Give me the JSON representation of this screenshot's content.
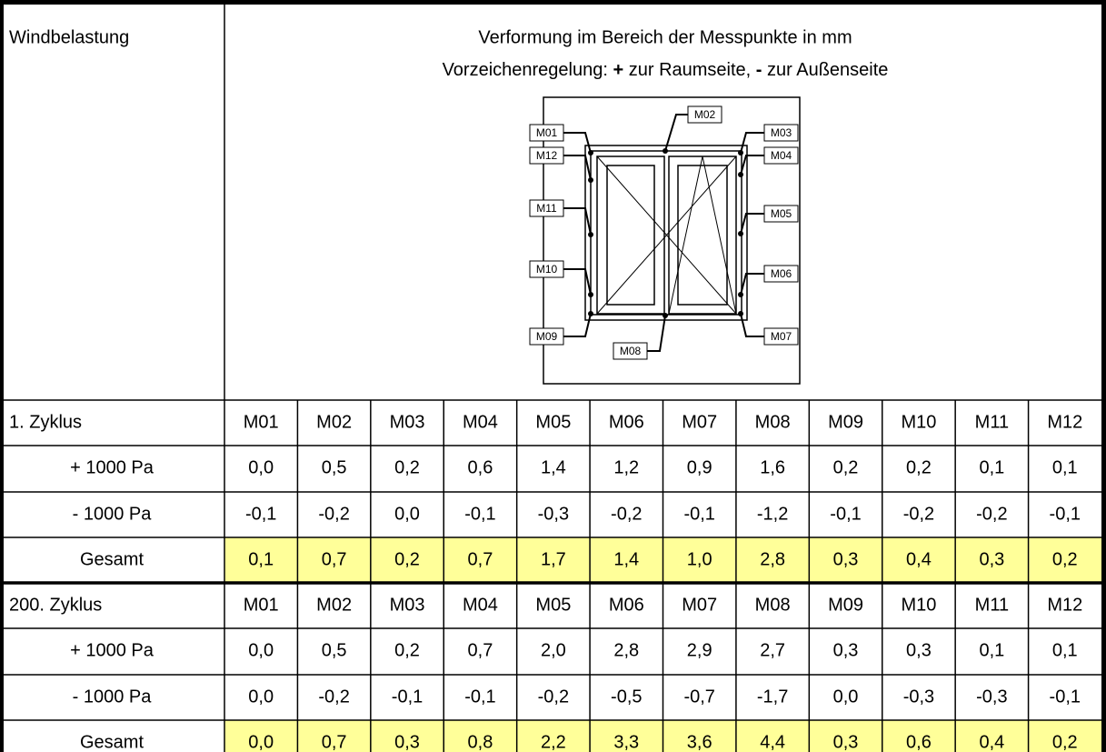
{
  "header": {
    "corner": "Windbelastung",
    "title": "Verformung im Bereich der Messpunkte in mm",
    "sign_rule": {
      "prefix": "Vorzeichenregelung: ",
      "plus": "+",
      "plus_text": " zur Raumseite, ",
      "minus": "-",
      "minus_text": " zur Außenseite"
    }
  },
  "diagram": {
    "labels": [
      "M01",
      "M02",
      "M03",
      "M04",
      "M05",
      "M06",
      "M07",
      "M08",
      "M09",
      "M10",
      "M11",
      "M12"
    ]
  },
  "sections": [
    {
      "label": "1. Zyklus",
      "columns": [
        "M01",
        "M02",
        "M03",
        "M04",
        "M05",
        "M06",
        "M07",
        "M08",
        "M09",
        "M10",
        "M11",
        "M12"
      ],
      "rows": [
        {
          "label": "+ 1000 Pa",
          "values": [
            "0,0",
            "0,5",
            "0,2",
            "0,6",
            "1,4",
            "1,2",
            "0,9",
            "1,6",
            "0,2",
            "0,2",
            "0,1",
            "0,1"
          ]
        },
        {
          "label": "- 1000 Pa",
          "values": [
            "-0,1",
            "-0,2",
            "0,0",
            "-0,1",
            "-0,3",
            "-0,2",
            "-0,1",
            "-1,2",
            "-0,1",
            "-0,2",
            "-0,2",
            "-0,1"
          ]
        },
        {
          "label": "Gesamt",
          "values": [
            "0,1",
            "0,7",
            "0,2",
            "0,7",
            "1,7",
            "1,4",
            "1,0",
            "2,8",
            "0,3",
            "0,4",
            "0,3",
            "0,2"
          ]
        }
      ]
    },
    {
      "label": "200. Zyklus",
      "columns": [
        "M01",
        "M02",
        "M03",
        "M04",
        "M05",
        "M06",
        "M07",
        "M08",
        "M09",
        "M10",
        "M11",
        "M12"
      ],
      "rows": [
        {
          "label": "+ 1000 Pa",
          "values": [
            "0,0",
            "0,5",
            "0,2",
            "0,7",
            "2,0",
            "2,8",
            "2,9",
            "2,7",
            "0,3",
            "0,3",
            "0,1",
            "0,1"
          ]
        },
        {
          "label": "- 1000 Pa",
          "values": [
            "0,0",
            "-0,2",
            "-0,1",
            "-0,1",
            "-0,2",
            "-0,5",
            "-0,7",
            "-1,7",
            "0,0",
            "-0,3",
            "-0,3",
            "-0,1"
          ]
        },
        {
          "label": "Gesamt",
          "values": [
            "0,0",
            "0,7",
            "0,3",
            "0,8",
            "2,2",
            "3,3",
            "3,6",
            "4,4",
            "0,3",
            "0,6",
            "0,4",
            "0,2"
          ]
        }
      ]
    }
  ]
}
